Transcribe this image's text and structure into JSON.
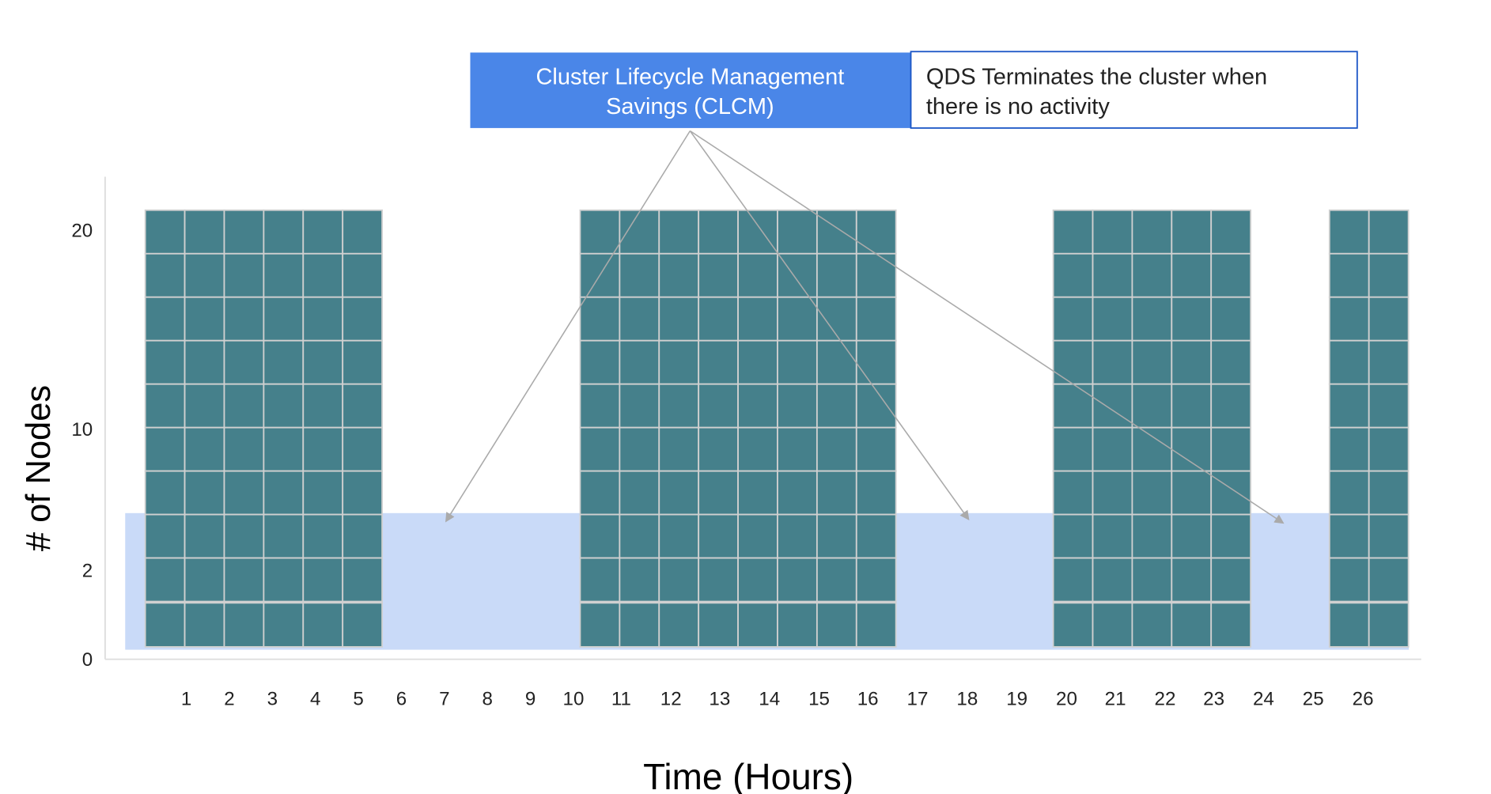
{
  "callout": {
    "title": [
      "Cluster Lifecycle Management",
      "Savings (CLCM)"
    ],
    "note": [
      "QDS Terminates the cluster when",
      "there is no activity"
    ]
  },
  "y_axis": {
    "title": "# of Nodes",
    "labels": [
      "20",
      "10",
      "2",
      "0"
    ]
  },
  "x_axis": {
    "title": "Time (Hours)",
    "labels": [
      1,
      2,
      3,
      4,
      5,
      6,
      7,
      8,
      9,
      10,
      11,
      12,
      13,
      14,
      15,
      16,
      17,
      18,
      19,
      20,
      21,
      22,
      23,
      24,
      25,
      26
    ]
  }
}
